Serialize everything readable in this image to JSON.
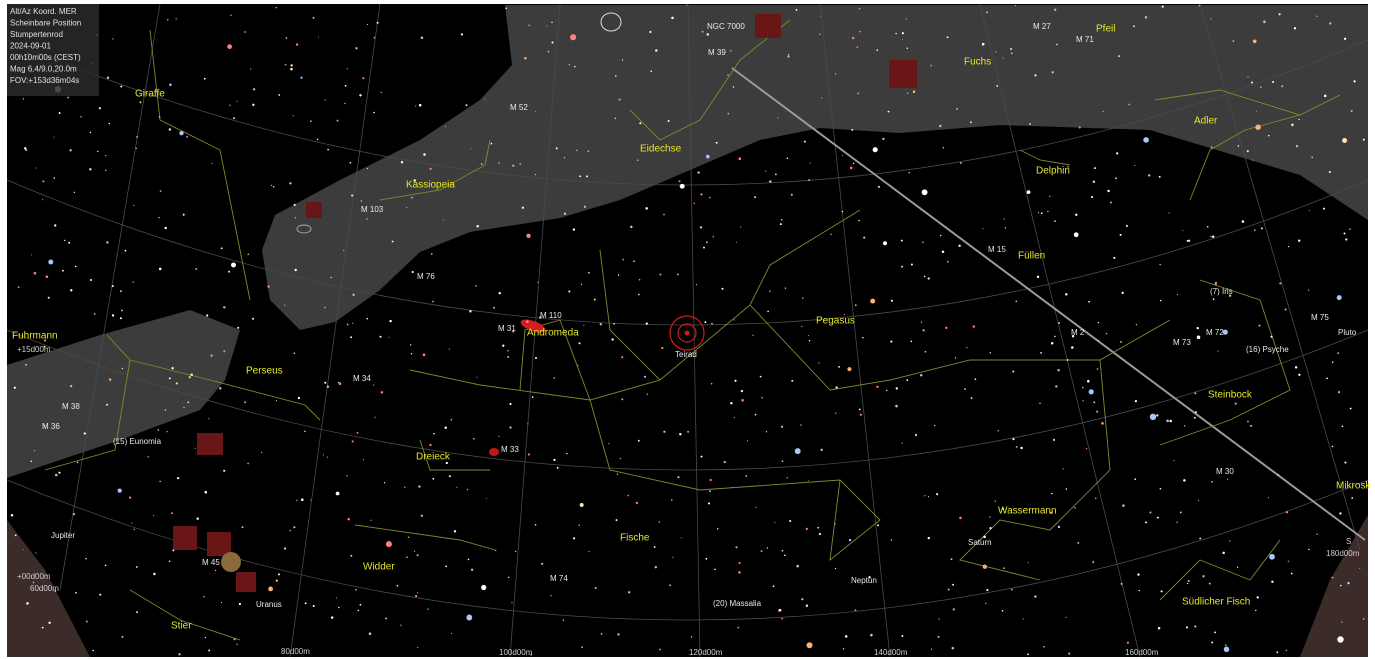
{
  "info": [
    "Alt/Az Koord. MER",
    "Scheinbare Position",
    "Stumpertenrod",
    "2024-09-01",
    "00h10m00s (CEST)",
    "Mag 6.4/9.0,20.0m",
    "FOV:+153d36m04s"
  ],
  "constellations": [
    "Giraffe",
    "Kassiopeia",
    "Eidechse",
    "Fuchs",
    "Pfeil",
    "Adler",
    "Delphin",
    "Füllen",
    "Pegasus",
    "Andromeda",
    "Perseus",
    "Fuhrmann",
    "Dreieck",
    "Steinbock",
    "Wassermann",
    "Fische",
    "Widder",
    "Stier",
    "Südlicher Fisch",
    "Mikrosk"
  ],
  "objects": [
    "NGC 7000",
    "M 39",
    "M 27",
    "M 71",
    "M 52",
    "M 103",
    "M 76",
    "M 110",
    "M 31",
    "M 34",
    "M 38",
    "M 36",
    "(15) Eunomia",
    "M 33",
    "M 15",
    "(7) Iris",
    "M 72",
    "(16) Psyche",
    "Pluto",
    "M 2",
    "M 73",
    "M 75",
    "M 30",
    "Saturn",
    "Jupiter",
    "M 45",
    "Uranus",
    "M 74",
    "Neptun",
    "(20) Massalia",
    "Teirad"
  ],
  "grid_labels": [
    "+15d00m",
    "+00d00m",
    "60d00m",
    "80d00m",
    "100d00m",
    "120d00m",
    "140d00m",
    "160d00m",
    "180d00m",
    "S"
  ]
}
